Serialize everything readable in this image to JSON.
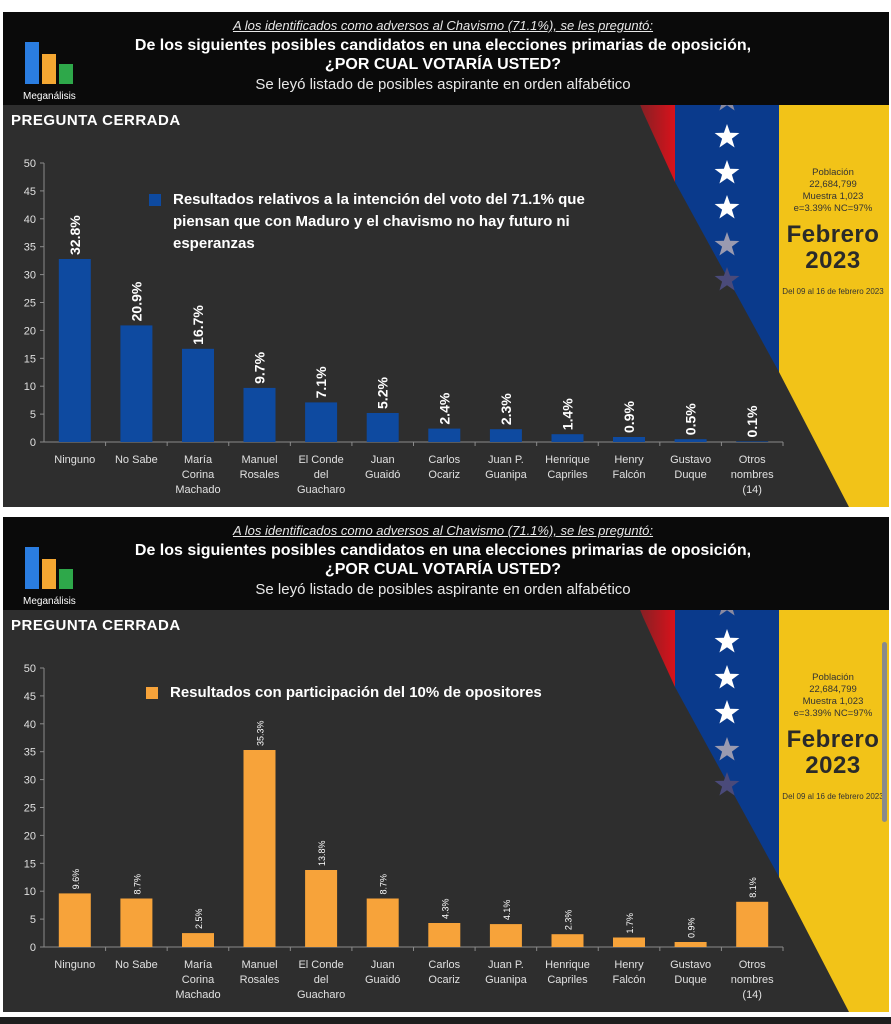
{
  "slides": [
    {
      "header": {
        "logo_text": "Meganálisis",
        "intro": "A los identificados como adversos al Chavismo (71.1%), se les preguntó:",
        "question_line1": "De los siguientes posibles candidatos en una elecciones primarias de oposición,",
        "question_line2": "¿POR CUAL VOTARÍA USTED?",
        "note": "Se leyó listado de posibles aspirante en orden alfabético"
      },
      "section_label": "PREGUNTA CERRADA",
      "info": {
        "population": "Población",
        "population_value": "22,684,799",
        "sample": "Muestra 1,023",
        "error": "e=3.39% NC=97%",
        "month": "Febrero",
        "year": "2023",
        "dates": "Del 09 al 16 de febrero 2023"
      },
      "colors": {
        "bar": "#0e4aa0",
        "flag_yellow": "#f2c318",
        "flag_blue": "#0a3a8c",
        "flag_red": "#d8121b"
      }
    },
    {
      "header": {
        "logo_text": "Meganálisis",
        "intro": "A los identificados como adversos al Chavismo (71.1%), se les preguntó:",
        "question_line1": "De los siguientes posibles candidatos en una elecciones primarias de oposición,",
        "question_line2": "¿POR CUAL VOTARÍA USTED?",
        "note": "Se leyó listado de posibles aspirante en orden alfabético"
      },
      "section_label": "PREGUNTA CERRADA",
      "info": {
        "population": "Población",
        "population_value": "22,684,799",
        "sample": "Muestra 1,023",
        "error": "e=3.39% NC=97%",
        "month": "Febrero",
        "year": "2023",
        "dates": "Del 09 al 16 de febrero 2023"
      },
      "colors": {
        "bar": "#f7a33a",
        "flag_yellow": "#f2c318",
        "flag_blue": "#0a3a8c",
        "flag_red": "#d8121b"
      }
    }
  ],
  "chart_data": [
    {
      "type": "bar",
      "categories": [
        [
          "Ninguno"
        ],
        [
          "No Sabe"
        ],
        [
          "María",
          "Corina",
          "Machado"
        ],
        [
          "Manuel",
          "Rosales"
        ],
        [
          "El Conde",
          "del",
          "Guacharo"
        ],
        [
          "Juan",
          "Guaidó"
        ],
        [
          "Carlos",
          "Ocariz"
        ],
        [
          "Juan P.",
          "Guanipa"
        ],
        [
          "Henrique",
          "Capriles"
        ],
        [
          "Henry",
          "Falcón"
        ],
        [
          "Gustavo",
          "Duque"
        ],
        [
          "Otros",
          "nombres",
          "(14)"
        ]
      ],
      "series": [
        {
          "name": "Resultados relativos a la intención del voto del 71.1% que piensan que con Maduro y el chavismo no hay futuro ni esperanzas",
          "values": [
            32.8,
            20.9,
            16.7,
            9.7,
            7.1,
            5.2,
            2.4,
            2.3,
            1.4,
            0.9,
            0.5,
            0.1
          ]
        }
      ],
      "data_labels": [
        "32.8%",
        "20.9%",
        "16.7%",
        "9.7%",
        "7.1%",
        "5.2%",
        "2.4%",
        "2.3%",
        "1.4%",
        "0.9%",
        "0.5%",
        "0.1%"
      ],
      "legend_lines": [
        "Resultados relativos a la intención del  voto del 71.1% que",
        "piensan que con Maduro y el chavismo no hay futuro ni",
        "esperanzas"
      ],
      "yticks": [
        "0",
        "5",
        "10",
        "15",
        "20",
        "25",
        "30",
        "35",
        "40",
        "45",
        "50"
      ],
      "ylim": [
        0,
        50
      ],
      "grid": false,
      "label_style": "large-bold",
      "color": "#0e4aa0"
    },
    {
      "type": "bar",
      "categories": [
        [
          "Ninguno"
        ],
        [
          "No Sabe"
        ],
        [
          "María",
          "Corina",
          "Machado"
        ],
        [
          "Manuel",
          "Rosales"
        ],
        [
          "El Conde",
          "del",
          "Guacharo"
        ],
        [
          "Juan",
          "Guaidó"
        ],
        [
          "Carlos",
          "Ocariz"
        ],
        [
          "Juan P.",
          "Guanipa"
        ],
        [
          "Henrique",
          "Capriles"
        ],
        [
          "Henry",
          "Falcón"
        ],
        [
          "Gustavo",
          "Duque"
        ],
        [
          "Otros",
          "nombres",
          "(14)"
        ]
      ],
      "series": [
        {
          "name": "Resultados con participación del 10% de opositores",
          "values": [
            9.6,
            8.7,
            2.5,
            35.3,
            13.8,
            8.7,
            4.3,
            4.1,
            2.3,
            1.7,
            0.9,
            8.1
          ]
        }
      ],
      "data_labels": [
        "9.6%",
        "8.7%",
        "2.5%",
        "35.3%",
        "13.8%",
        "8.7%",
        "4.3%",
        "4.1%",
        "2.3%",
        "1.7%",
        "0.9%",
        "8.1%"
      ],
      "legend_lines": [
        "Resultados con participación del 10% de opositores"
      ],
      "yticks": [
        "0",
        "5",
        "10",
        "15",
        "20",
        "25",
        "30",
        "35",
        "40",
        "45",
        "50"
      ],
      "ylim": [
        0,
        50
      ],
      "grid": false,
      "label_style": "small",
      "color": "#f7a33a"
    }
  ]
}
